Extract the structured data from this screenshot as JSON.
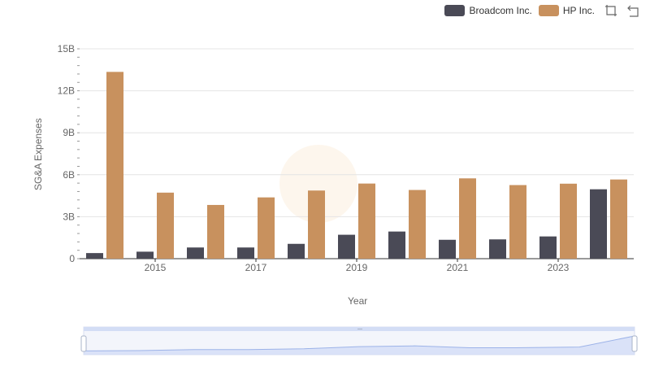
{
  "legend": {
    "items": [
      {
        "label": "Broadcom Inc.",
        "color": "#4a4a56"
      },
      {
        "label": "HP Inc.",
        "color": "#c8915e"
      }
    ],
    "tools": [
      "zoom-icon",
      "restore-icon"
    ]
  },
  "chart_data": {
    "type": "bar",
    "xlabel": "Year",
    "ylabel": "SG&A Expenses",
    "ylim": [
      0,
      15
    ],
    "y_ticks": [
      "0",
      "3B",
      "6B",
      "9B",
      "12B",
      "15B"
    ],
    "x_tick_labels": [
      "2015",
      "2017",
      "2019",
      "2021",
      "2023"
    ],
    "categories": [
      "2014",
      "2015",
      "2016",
      "2017",
      "2018",
      "2019",
      "2020",
      "2021",
      "2022",
      "2023",
      "2024"
    ],
    "unit": "B",
    "series": [
      {
        "name": "Broadcom Inc.",
        "color": "#4a4a56",
        "values": [
          0.4,
          0.5,
          0.8,
          0.8,
          1.06,
          1.71,
          1.94,
          1.35,
          1.38,
          1.59,
          4.96
        ]
      },
      {
        "name": "HP Inc.",
        "color": "#c8915e",
        "values": [
          13.35,
          4.72,
          3.84,
          4.38,
          4.87,
          5.37,
          4.91,
          5.74,
          5.26,
          5.36,
          5.66
        ]
      }
    ],
    "grid": true,
    "legend_position": "top-right",
    "data_zoom": {
      "overview_values": [
        0.4,
        0.5,
        0.8,
        0.8,
        1.06,
        1.71,
        1.94,
        1.35,
        1.38,
        1.59,
        4.96
      ]
    }
  }
}
